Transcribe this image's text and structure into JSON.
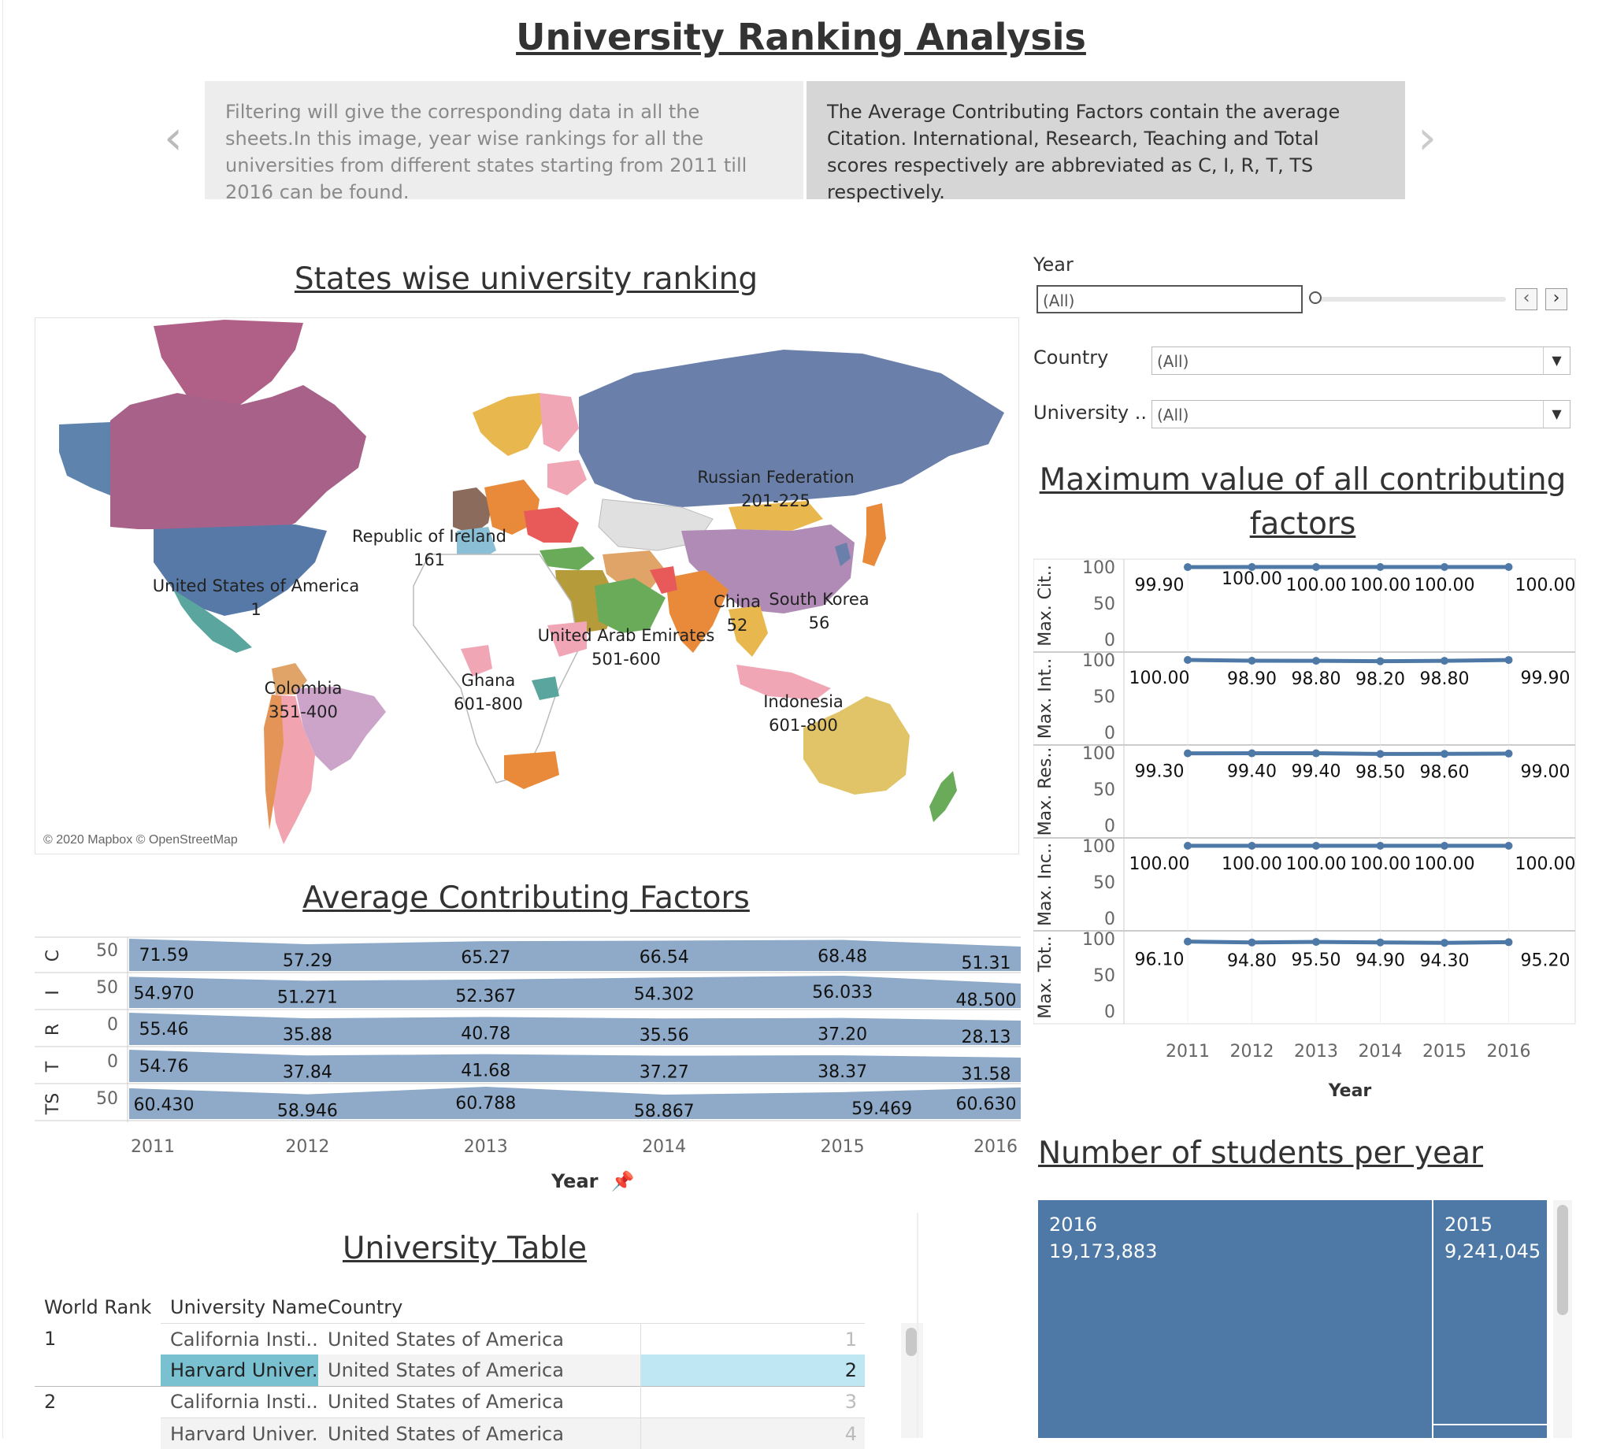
{
  "dashboard": {
    "title": "University Ranking Analysis"
  },
  "story": {
    "prev_label": "‹",
    "next_label": "›",
    "points": [
      {
        "text": "Filtering will give the corresponding data in all the sheets.In this image, year wise rankings for all the universities from different states starting from 2011 till 2016 can be found."
      },
      {
        "text": "The Average Contributing Factors contain the average Citation. International, Research, Teaching and Total scores respectively are abbreviated as C, I, R, T, TS respectively."
      }
    ]
  },
  "map": {
    "title": "States wise university ranking",
    "credit": "© 2020 Mapbox © OpenStreetMap",
    "labels": [
      {
        "name": "Russian Federation",
        "rank": "201-225"
      },
      {
        "name": "Republic of Ireland",
        "rank": "161"
      },
      {
        "name": "United States of America",
        "rank": "1"
      },
      {
        "name": "China",
        "rank": "52"
      },
      {
        "name": "South Korea",
        "rank": "56"
      },
      {
        "name": "United Arab Emirates",
        "rank": "501-600"
      },
      {
        "name": "Colombia",
        "rank": "351-400"
      },
      {
        "name": "Ghana",
        "rank": "601-800"
      },
      {
        "name": "Indonesia",
        "rank": "601-800"
      }
    ]
  },
  "filters": {
    "year": {
      "label": "Year",
      "value": "(All)",
      "prev": "‹",
      "next": "›"
    },
    "country": {
      "label": "Country",
      "value": "(All)"
    },
    "university": {
      "label": "University ..",
      "value": "(All)"
    }
  },
  "avg_factors": {
    "title": "Average Contributing Factors",
    "x_label": "Year",
    "years": [
      "2011",
      "2012",
      "2013",
      "2014",
      "2015",
      "2016"
    ],
    "rows": [
      {
        "label": "C",
        "tick": "50",
        "values": [
          "71.59",
          "57.29",
          "65.27",
          "66.54",
          "68.48",
          "51.31"
        ]
      },
      {
        "label": "I",
        "tick": "50",
        "values": [
          "54.970",
          "51.271",
          "52.367",
          "54.302",
          "56.033",
          "48.500"
        ]
      },
      {
        "label": "R",
        "tick": "0",
        "values": [
          "55.46",
          "35.88",
          "40.78",
          "35.56",
          "37.20",
          "28.13"
        ]
      },
      {
        "label": "T",
        "tick": "0",
        "values": [
          "54.76",
          "37.84",
          "41.68",
          "37.27",
          "38.37",
          "31.58"
        ]
      },
      {
        "label": "TS",
        "tick": "50",
        "values": [
          "60.430",
          "58.946",
          "60.788",
          "58.867",
          "59.469",
          "60.630"
        ]
      }
    ]
  },
  "max_factors": {
    "title_line1": "Maximum value of all contributing",
    "title_line2": "factors",
    "x_label": "Year",
    "years": [
      "2011",
      "2012",
      "2013",
      "2014",
      "2015",
      "2016"
    ],
    "ticks": [
      "100",
      "50",
      "0"
    ],
    "panels": [
      {
        "label": "Max. Cit..",
        "values": [
          "99.90",
          "100.00",
          "100.00",
          "100.00",
          "100.00",
          "100.00"
        ]
      },
      {
        "label": "Max. Int..",
        "values": [
          "100.00",
          "98.90",
          "98.80",
          "98.20",
          "98.80",
          "99.90"
        ]
      },
      {
        "label": "Max. Res..",
        "values": [
          "99.30",
          "99.40",
          "99.40",
          "98.50",
          "98.60",
          "99.00"
        ]
      },
      {
        "label": "Max. Inc..",
        "values": [
          "100.00",
          "100.00",
          "100.00",
          "100.00",
          "100.00",
          "100.00"
        ]
      },
      {
        "label": "Max. Tot..",
        "values": [
          "96.10",
          "94.80",
          "95.50",
          "94.90",
          "94.30",
          "95.20"
        ]
      }
    ]
  },
  "chart_data": {
    "type": "line",
    "title": "Maximum value of all contributing factors",
    "x": [
      2011,
      2012,
      2013,
      2014,
      2015,
      2016
    ],
    "xlabel": "Year",
    "ylim": [
      0,
      100
    ],
    "series": [
      {
        "name": "Max. Cit..",
        "values": [
          99.9,
          100.0,
          100.0,
          100.0,
          100.0,
          100.0
        ]
      },
      {
        "name": "Max. Int..",
        "values": [
          100.0,
          98.9,
          98.8,
          98.2,
          98.8,
          99.9
        ]
      },
      {
        "name": "Max. Res..",
        "values": [
          99.3,
          99.4,
          99.4,
          98.5,
          98.6,
          99.0
        ]
      },
      {
        "name": "Max. Inc..",
        "values": [
          100.0,
          100.0,
          100.0,
          100.0,
          100.0,
          100.0
        ]
      },
      {
        "name": "Max. Tot..",
        "values": [
          96.1,
          94.8,
          95.5,
          94.9,
          94.3,
          95.2
        ]
      }
    ],
    "color": "#4e79a7"
  },
  "univ_table": {
    "title": "University Table",
    "headers": [
      "World Rank",
      "University Name",
      "Country"
    ],
    "rows": [
      {
        "rank": "1",
        "name": "California Insti..",
        "country": "United States of America",
        "index": "1"
      },
      {
        "rank": "",
        "name": "Harvard Univer..",
        "country": "United States of America",
        "index": "2"
      },
      {
        "rank": "2",
        "name": "California Insti..",
        "country": "United States of America",
        "index": "3"
      },
      {
        "rank": "",
        "name": "Harvard Univer..",
        "country": "United States of America",
        "index": "4"
      }
    ]
  },
  "students": {
    "title": "Number of students per year",
    "cells": [
      {
        "year": "2016",
        "count": "19,173,883"
      },
      {
        "year": "2015",
        "count": "9,241,045"
      }
    ]
  }
}
